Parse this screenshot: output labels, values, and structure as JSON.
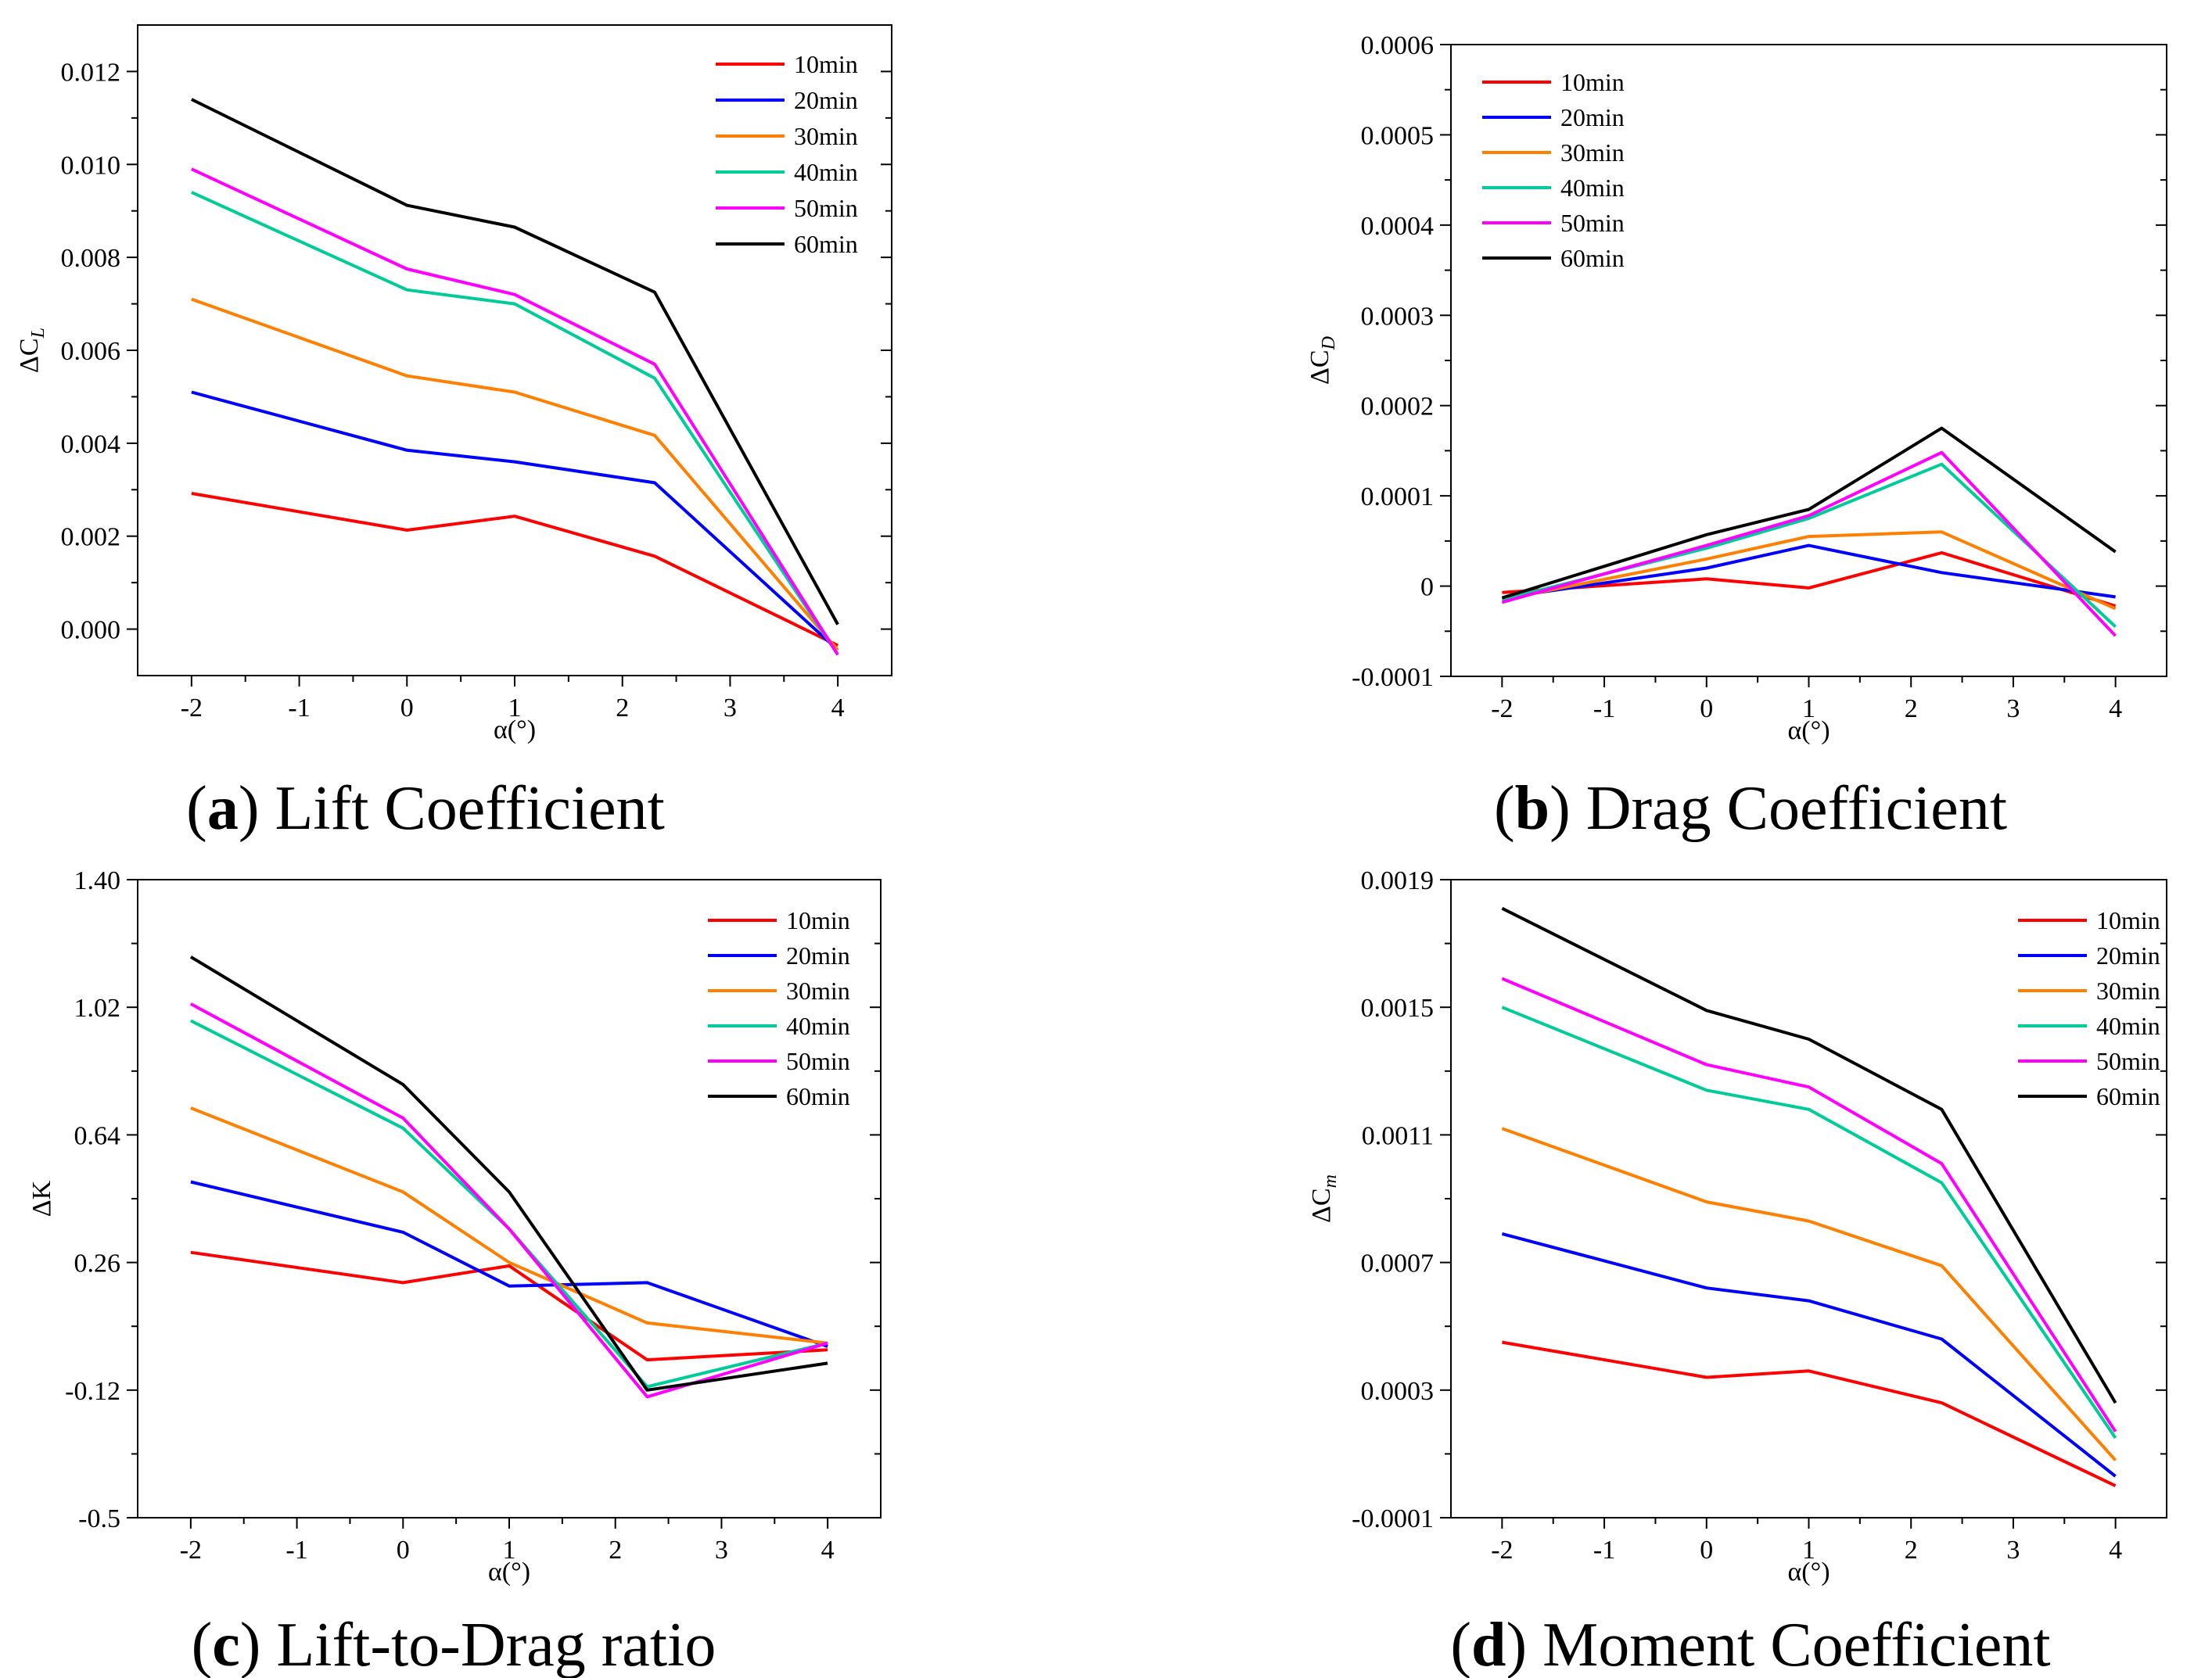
{
  "colors": {
    "10min": "#ff0000",
    "20min": "#0000ff",
    "30min": "#ff7f00",
    "40min": "#00cc99",
    "50min": "#ff00ff",
    "60min": "#000000"
  },
  "chart_data": [
    {
      "type": "line",
      "panel": "a",
      "caption": {
        "letter": "a",
        "text": "Lift Coefficient"
      },
      "xlabel": "α(°)",
      "ylabel": "ΔC",
      "ylabel_sub": "L",
      "x_ticks": [
        "-2",
        "-1",
        "0",
        "1",
        "2",
        "3",
        "4"
      ],
      "xlim": [
        -2.5,
        4.5
      ],
      "ylim": [
        -0.001,
        0.013
      ],
      "y_ticks": [
        0.0,
        0.002,
        0.004,
        0.006,
        0.008,
        0.01,
        0.012
      ],
      "y_tick_labels": [
        "0.000",
        "0.002",
        "0.004",
        "0.006",
        "0.008",
        "0.010",
        "0.012"
      ],
      "legend_position": "top-right",
      "x": [
        -2,
        0,
        1,
        2.3,
        4
      ],
      "series": [
        {
          "name": "10min",
          "values": [
            0.00292,
            0.00213,
            0.00243,
            0.00157,
            -0.00035
          ]
        },
        {
          "name": "20min",
          "values": [
            0.0051,
            0.00385,
            0.0036,
            0.00315,
            -0.00045
          ]
        },
        {
          "name": "30min",
          "values": [
            0.0071,
            0.00545,
            0.0051,
            0.00417,
            -0.00045
          ]
        },
        {
          "name": "40min",
          "values": [
            0.0094,
            0.0073,
            0.007,
            0.0054,
            -0.00055
          ]
        },
        {
          "name": "50min",
          "values": [
            0.0099,
            0.00775,
            0.0072,
            0.0057,
            -0.00055
          ]
        },
        {
          "name": "60min",
          "values": [
            0.0114,
            0.00912,
            0.00865,
            0.00725,
            0.0001
          ]
        }
      ]
    },
    {
      "type": "line",
      "panel": "b",
      "caption": {
        "letter": "b",
        "text": "Drag Coefficient"
      },
      "xlabel": "α(°)",
      "ylabel": "ΔC",
      "ylabel_sub": "D",
      "x_ticks": [
        "-2",
        "-1",
        "0",
        "1",
        "2",
        "3",
        "4"
      ],
      "xlim": [
        -2.5,
        4.5
      ],
      "ylim": [
        -0.0001,
        0.0006
      ],
      "y_ticks": [
        -0.0001,
        0,
        0.0001,
        0.0002,
        0.0003,
        0.0004,
        0.0005,
        0.0006
      ],
      "y_tick_labels": [
        "-0.0001",
        "0",
        "0.0001",
        "0.0002",
        "0.0003",
        "0.0004",
        "0.0005",
        "0.0006"
      ],
      "legend_position": "top-left",
      "x": [
        -2,
        0,
        1,
        2.3,
        4
      ],
      "series": [
        {
          "name": "10min",
          "values": [
            -7e-06,
            8e-06,
            -2e-06,
            3.7e-05,
            -2.2e-05
          ]
        },
        {
          "name": "20min",
          "values": [
            -1.3e-05,
            2e-05,
            4.5e-05,
            1.5e-05,
            -1.2e-05
          ]
        },
        {
          "name": "30min",
          "values": [
            -1.5e-05,
            3e-05,
            5.5e-05,
            6e-05,
            -2.5e-05
          ]
        },
        {
          "name": "40min",
          "values": [
            -1.5e-05,
            4.2e-05,
            7.5e-05,
            0.000135,
            -4.5e-05
          ]
        },
        {
          "name": "50min",
          "values": [
            -1.8e-05,
            4.5e-05,
            7.8e-05,
            0.000148,
            -5.5e-05
          ]
        },
        {
          "name": "60min",
          "values": [
            -1.3e-05,
            5.7e-05,
            8.5e-05,
            0.000175,
            3.8e-05
          ]
        }
      ]
    },
    {
      "type": "line",
      "panel": "c",
      "caption": {
        "letter": "c",
        "text": "Lift-to-Drag ratio"
      },
      "xlabel": "α(°)",
      "ylabel": "ΔK",
      "ylabel_sub": "",
      "x_ticks": [
        "-2",
        "-1",
        "0",
        "1",
        "2",
        "3",
        "4"
      ],
      "xlim": [
        -2.5,
        4.5
      ],
      "ylim": [
        -0.5,
        1.4
      ],
      "y_ticks": [
        -0.5,
        -0.12,
        0.26,
        0.64,
        1.02,
        1.4
      ],
      "y_tick_labels": [
        "-0.5",
        "-0.12",
        "0.26",
        "0.64",
        "1.02",
        "1.40"
      ],
      "legend_position": "top-right",
      "x": [
        -2,
        0,
        1,
        2.3,
        4
      ],
      "series": [
        {
          "name": "10min",
          "values": [
            0.29,
            0.2,
            0.25,
            -0.03,
            0.0
          ]
        },
        {
          "name": "20min",
          "values": [
            0.5,
            0.35,
            0.19,
            0.2,
            0.01
          ]
        },
        {
          "name": "30min",
          "values": [
            0.72,
            0.47,
            0.26,
            0.08,
            0.02
          ]
        },
        {
          "name": "40min",
          "values": [
            0.98,
            0.66,
            0.36,
            -0.11,
            0.02
          ]
        },
        {
          "name": "50min",
          "values": [
            1.03,
            0.69,
            0.36,
            -0.14,
            0.02
          ]
        },
        {
          "name": "60min",
          "values": [
            1.17,
            0.79,
            0.47,
            -0.12,
            -0.04
          ]
        }
      ]
    },
    {
      "type": "line",
      "panel": "d",
      "caption": {
        "letter": "d",
        "text": "Moment Coefficient"
      },
      "xlabel": "α(°)",
      "ylabel": "ΔC",
      "ylabel_sub": "m",
      "x_ticks": [
        "-2",
        "-1",
        "0",
        "1",
        "2",
        "3",
        "4"
      ],
      "xlim": [
        -2.5,
        4.5
      ],
      "ylim": [
        -0.0001,
        0.0019
      ],
      "y_ticks": [
        -0.0001,
        0.0003,
        0.0007,
        0.0011,
        0.0015,
        0.0019
      ],
      "y_tick_labels": [
        "-0.0001",
        "0.0003",
        "0.0007",
        "0.0011",
        "0.0015",
        "0.0019"
      ],
      "legend_position": "top-right",
      "x": [
        -2,
        0,
        1,
        2.3,
        4
      ],
      "series": [
        {
          "name": "10min",
          "values": [
            0.00045,
            0.00034,
            0.00036,
            0.00026,
            0.0
          ]
        },
        {
          "name": "20min",
          "values": [
            0.00079,
            0.00062,
            0.00058,
            0.00046,
            3e-05
          ]
        },
        {
          "name": "30min",
          "values": [
            0.00112,
            0.00089,
            0.00083,
            0.00069,
            8e-05
          ]
        },
        {
          "name": "40min",
          "values": [
            0.0015,
            0.00124,
            0.00118,
            0.00095,
            0.00015
          ]
        },
        {
          "name": "50min",
          "values": [
            0.00159,
            0.00132,
            0.00125,
            0.00101,
            0.00017
          ]
        },
        {
          "name": "60min",
          "values": [
            0.00181,
            0.00149,
            0.0014,
            0.00118,
            0.00026
          ]
        }
      ]
    }
  ]
}
